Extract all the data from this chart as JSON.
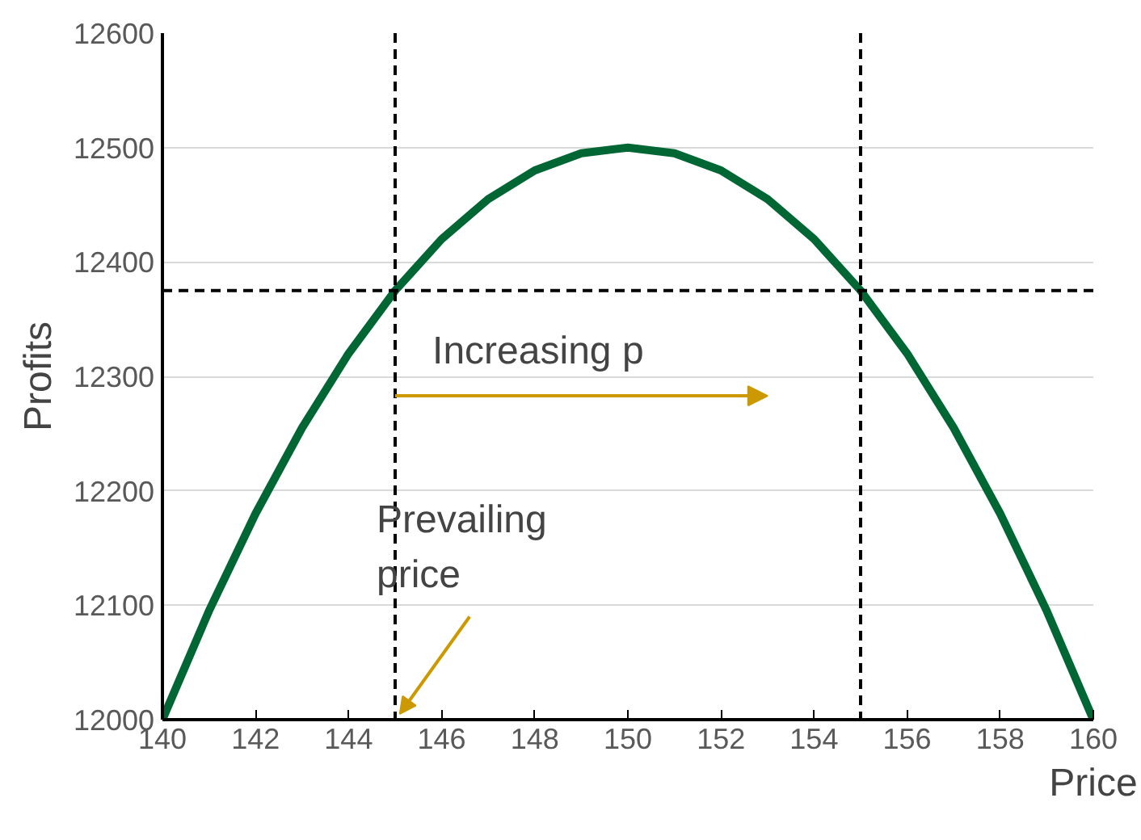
{
  "chart_data": {
    "type": "line",
    "xlabel": "Price",
    "ylabel": "Profits",
    "x": [
      140,
      141,
      142,
      143,
      144,
      145,
      146,
      147,
      148,
      149,
      150,
      151,
      152,
      153,
      154,
      155,
      156,
      157,
      158,
      159,
      160
    ],
    "series": [
      {
        "color": "#006633",
        "values": [
          12000,
          12095,
          12180,
          12255,
          12320,
          12375,
          12420,
          12455,
          12480,
          12495,
          12500,
          12495,
          12480,
          12455,
          12420,
          12375,
          12320,
          12255,
          12180,
          12095,
          12000
        ]
      }
    ],
    "xlim": [
      140,
      160
    ],
    "xticks": [
      140,
      142,
      144,
      146,
      148,
      150,
      152,
      154,
      156,
      158,
      160
    ],
    "ylim": [
      12000,
      12600
    ],
    "yticks": [
      12000,
      12100,
      12200,
      12300,
      12400,
      12500,
      12600
    ],
    "grid": "y",
    "marker": "none",
    "line_style": "solid",
    "ref_lines": [
      {
        "axis": "y",
        "value": 12375,
        "color": "#000000",
        "line_style": "dashed"
      },
      {
        "axis": "x",
        "value": 145,
        "color": "#000000",
        "line_style": "dashed"
      },
      {
        "axis": "x",
        "value": 155,
        "color": "#000000",
        "line_style": "dashed"
      }
    ],
    "annotations": [
      {
        "text": "Increasing p",
        "x": 145,
        "y": 12283
      },
      {
        "text": "Prevailing price",
        "x": 145,
        "y": 12000
      }
    ]
  }
}
